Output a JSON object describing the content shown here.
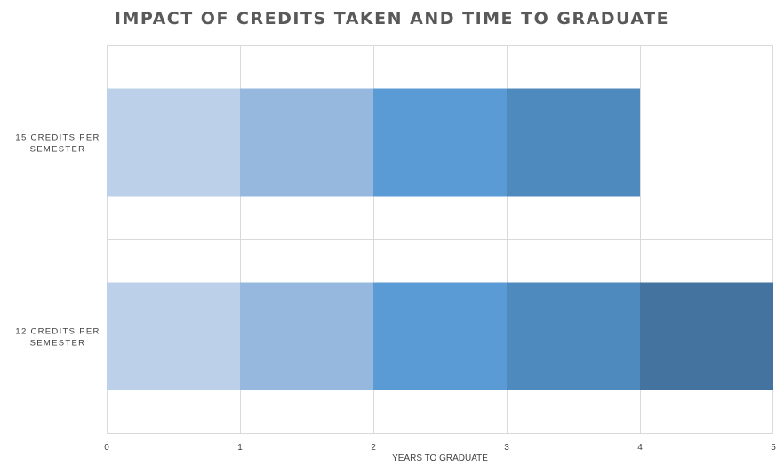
{
  "chart_data": {
    "type": "bar",
    "orientation": "horizontal",
    "stacked": true,
    "title": "IMPACT OF CREDITS TAKEN AND TIME TO GRADUATE",
    "xlabel": "YEARS TO GRADUATE",
    "ylabel": "",
    "categories": [
      "15 CREDITS PER SEMESTER",
      "12 CREDITS PER SEMESTER"
    ],
    "xlim": [
      0,
      5
    ],
    "xticks": [
      "0",
      "1",
      "2",
      "3",
      "4",
      "5"
    ],
    "grid": true,
    "legend": "none",
    "series": [
      {
        "values": [
          1,
          1
        ],
        "color": "#BDD0E9"
      },
      {
        "values": [
          1,
          1
        ],
        "color": "#96B8DF"
      },
      {
        "values": [
          1,
          1
        ],
        "color": "#5B9BD5"
      },
      {
        "values": [
          1,
          1
        ],
        "color": "#4F8ABF"
      },
      {
        "values": [
          0,
          1
        ],
        "color": "#44739F"
      }
    ]
  }
}
